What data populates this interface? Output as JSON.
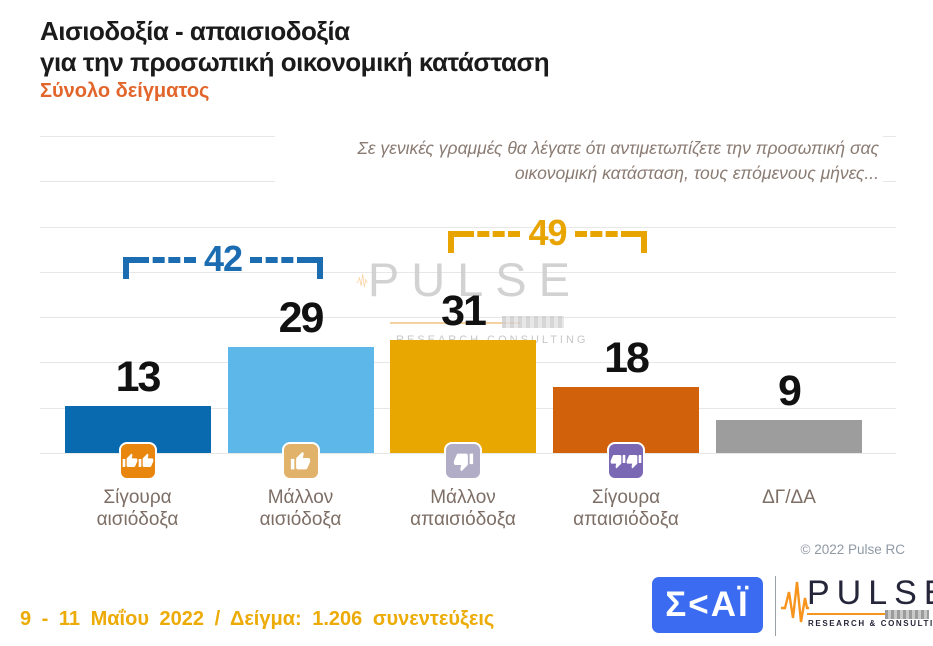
{
  "header": {
    "title_line1": "Αισιοδοξία - απαισιοδοξία",
    "title_line2": "για την προσωπική οικονομική κατάσταση",
    "subtitle": "Σύνολο δείγματος"
  },
  "question": "Σε γενικές γραμμές θα λέγατε ότι αντιμετωπίζετε την προσωπική σας οικονομική κατάσταση, τους επόμενους μήνες...",
  "chart_data": {
    "type": "bar",
    "title": "Αισιοδοξία - απαισιοδοξία για την προσωπική οικονομική κατάσταση",
    "subtitle": "Σύνολο δείγματος",
    "categories": [
      "Σίγουρα αισιόδοξα",
      "Μάλλον αισιόδοξα",
      "Μάλλον απαισιόδοξα",
      "Σίγουρα απαισιόδοξα",
      "ΔΓ/ΔΑ"
    ],
    "categories_lines": [
      [
        "Σίγουρα",
        "αισιόδοξα"
      ],
      [
        "Μάλλον",
        "αισιόδοξα"
      ],
      [
        "Μάλλον",
        "απαισιόδοξα"
      ],
      [
        "Σίγουρα",
        "απαισιόδοξα"
      ],
      [
        "ΔΓ/ΔΑ"
      ]
    ],
    "values": [
      13,
      29,
      31,
      18,
      9
    ],
    "bar_colors": [
      "#0a6aaf",
      "#5db7e8",
      "#e9a702",
      "#d2610b",
      "#9d9d9d"
    ],
    "icons": [
      "double-thumbs-up",
      "thumb-up",
      "thumb-down",
      "double-thumbs-down",
      null
    ],
    "icon_colors": [
      "#e8860d",
      "#e0b26a",
      "#b2adc7",
      "#7b68b4",
      null
    ],
    "group_brackets": [
      {
        "label": "42",
        "from": 0,
        "to": 1,
        "color": "#1b6cb0"
      },
      {
        "label": "49",
        "from": 2,
        "to": 3,
        "color": "#e8a501"
      }
    ],
    "xlabel": "",
    "ylabel": "",
    "ylim": [
      0,
      90
    ],
    "grid": true,
    "legend": "none"
  },
  "watermark": {
    "word": "PULSE",
    "sub": "RESEARCH  CONSULTING"
  },
  "footer": {
    "copyright": "© 2022 Pulse RC",
    "fieldwork": "9 - 11 Μαΐου 2022 / Δείγμα: 1.206 συνεντεύξεις"
  },
  "logos": {
    "skai_text": "Σ<ΑΪ",
    "pulse_word": "PULSE",
    "pulse_sub": "RESEARCH & CONSULTING"
  }
}
